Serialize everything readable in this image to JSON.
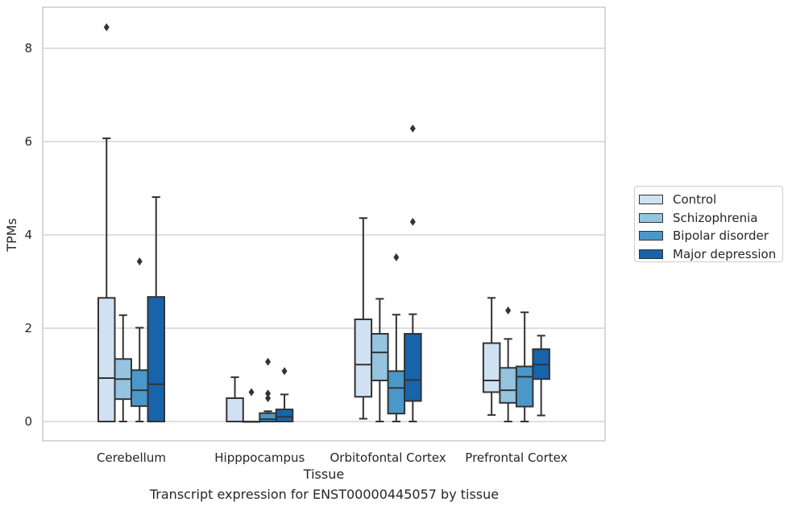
{
  "chart_data": {
    "type": "box",
    "caption": "Transcript expression for ENST00000445057 by tissue",
    "xlabel": "Tissue",
    "ylabel": "TPMs",
    "ylim": [
      -0.4,
      8.9
    ],
    "yticks": [
      0,
      2,
      4,
      6,
      8
    ],
    "grid": "horizontal",
    "legend_position": "right",
    "categories": [
      "Cerebellum",
      "Hipppocampus",
      "Orbitofontal Cortex",
      "Prefrontal Cortex"
    ],
    "series": [
      {
        "name": "Control",
        "color": "#d0e1f2",
        "boxes": [
          {
            "min": 0,
            "q1": 0,
            "median": 0.93,
            "q3": 2.65,
            "max": 6.07,
            "outliers": [
              8.45
            ]
          },
          {
            "min": 0,
            "q1": 0,
            "median": 0,
            "q3": 0.5,
            "max": 0.95,
            "outliers": []
          },
          {
            "min": 0.06,
            "q1": 0.53,
            "median": 1.22,
            "q3": 2.19,
            "max": 4.36,
            "outliers": []
          },
          {
            "min": 0.14,
            "q1": 0.63,
            "median": 0.88,
            "q3": 1.68,
            "max": 2.65,
            "outliers": []
          }
        ]
      },
      {
        "name": "Schizophrenia",
        "color": "#94c4df",
        "boxes": [
          {
            "min": 0,
            "q1": 0.48,
            "median": 0.91,
            "q3": 1.34,
            "max": 2.28,
            "outliers": []
          },
          {
            "min": 0,
            "q1": 0,
            "median": 0,
            "q3": 0,
            "max": 0,
            "outliers": [
              0.63
            ]
          },
          {
            "min": 0,
            "q1": 0.88,
            "median": 1.48,
            "q3": 1.88,
            "max": 2.63,
            "outliers": []
          },
          {
            "min": 0,
            "q1": 0.4,
            "median": 0.67,
            "q3": 1.15,
            "max": 1.77,
            "outliers": [
              2.38
            ]
          }
        ]
      },
      {
        "name": "Bipolar disorder",
        "color": "#4a98c9",
        "boxes": [
          {
            "min": 0,
            "q1": 0.33,
            "median": 0.67,
            "q3": 1.1,
            "max": 2.01,
            "outliers": [
              3.43
            ]
          },
          {
            "min": 0,
            "q1": 0,
            "median": 0.05,
            "q3": 0.18,
            "max": 0.22,
            "outliers": [
              0.5,
              0.6,
              1.28
            ]
          },
          {
            "min": 0,
            "q1": 0.17,
            "median": 0.72,
            "q3": 1.08,
            "max": 2.29,
            "outliers": [
              3.52
            ]
          },
          {
            "min": 0,
            "q1": 0.32,
            "median": 0.96,
            "q3": 1.18,
            "max": 2.34,
            "outliers": []
          }
        ]
      },
      {
        "name": "Major depression",
        "color": "#1764ab",
        "boxes": [
          {
            "min": 0,
            "q1": 0,
            "median": 0.8,
            "q3": 2.67,
            "max": 4.81,
            "outliers": []
          },
          {
            "min": 0,
            "q1": 0,
            "median": 0.1,
            "q3": 0.26,
            "max": 0.58,
            "outliers": [
              1.08
            ]
          },
          {
            "min": 0,
            "q1": 0.44,
            "median": 0.89,
            "q3": 1.88,
            "max": 2.3,
            "outliers": [
              4.28,
              6.28
            ]
          },
          {
            "min": 0.13,
            "q1": 0.91,
            "median": 1.22,
            "q3": 1.55,
            "max": 1.84,
            "outliers": []
          }
        ]
      }
    ]
  }
}
